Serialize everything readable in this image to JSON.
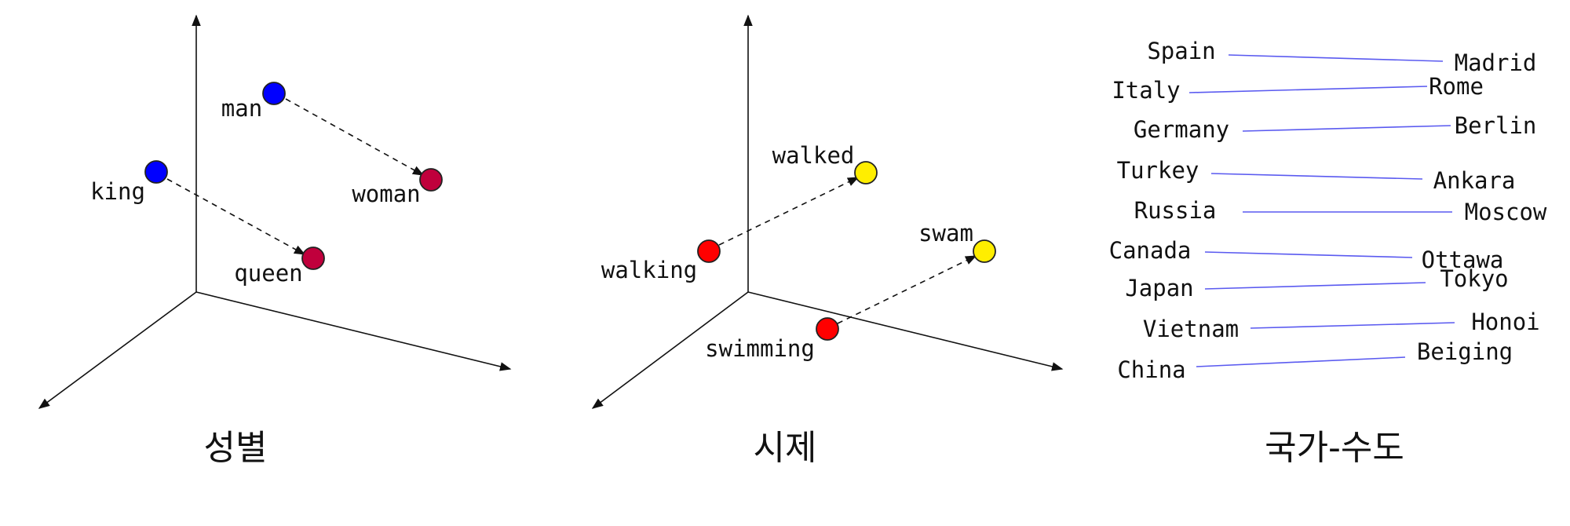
{
  "panels": {
    "gender": {
      "caption": "성별",
      "words": {
        "man": "man",
        "woman": "woman",
        "king": "king",
        "queen": "queen"
      }
    },
    "tense": {
      "caption": "시제",
      "words": {
        "walked": "walked",
        "walking": "walking",
        "swam": "swam",
        "swimming": "swimming"
      }
    },
    "country_capital": {
      "caption": "국가-수도",
      "pairs": [
        {
          "country": "Spain",
          "capital": "Madrid"
        },
        {
          "country": "Italy",
          "capital": "Rome"
        },
        {
          "country": "Germany",
          "capital": "Berlin"
        },
        {
          "country": "Turkey",
          "capital": "Ankara"
        },
        {
          "country": "Russia",
          "capital": "Moscow"
        },
        {
          "country": "Canada",
          "capital": "Ottawa"
        },
        {
          "country": "Japan",
          "capital": "Tokyo"
        },
        {
          "country": "Vietnam",
          "capital": "Honoi"
        },
        {
          "country": "China",
          "capital": "Beiging"
        }
      ]
    }
  },
  "colors": {
    "male": "#0000ff",
    "female": "#c0003c",
    "present": "#ff0000",
    "past": "#ffee00",
    "link": "#5a5af0"
  }
}
